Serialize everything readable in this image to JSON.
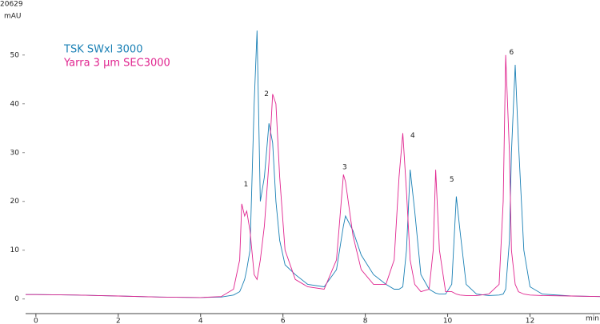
{
  "chart_data": {
    "type": "line",
    "header_value": "20629",
    "y_label": "mAU",
    "x_label": "min",
    "annotations": [
      "1",
      "2",
      "3",
      "4",
      "5",
      "6"
    ],
    "x": [
      -0.25,
      0,
      1,
      2,
      3,
      4,
      4.5,
      4.8,
      4.95,
      5.0,
      5.07,
      5.12,
      5.2,
      5.3,
      5.37,
      5.45,
      5.55,
      5.66,
      5.75,
      5.83,
      5.92,
      6.05,
      6.3,
      6.6,
      7.0,
      7.3,
      7.47,
      7.52,
      7.7,
      7.9,
      8.2,
      8.5,
      8.7,
      8.82,
      8.91,
      9.0,
      9.09,
      9.2,
      9.35,
      9.55,
      9.65,
      9.71,
      9.8,
      9.95,
      10.1,
      10.21,
      10.3,
      10.45,
      10.7,
      11.0,
      11.25,
      11.35,
      11.41,
      11.5,
      11.55,
      11.64,
      11.72,
      11.85,
      12.0,
      12.3,
      13,
      13.7
    ],
    "series": [
      {
        "name": "TSK SWxl 3000",
        "color": "#1a80b5",
        "values": [
          0.9,
          0.9,
          0.8,
          0.6,
          0.4,
          0.3,
          0.4,
          0.8,
          1.5,
          2.5,
          4,
          6,
          10,
          40,
          55,
          20,
          25,
          36,
          32,
          20,
          12,
          7,
          5,
          3,
          2.5,
          6,
          15,
          17,
          14,
          9,
          5,
          3,
          2,
          2,
          2.5,
          10,
          26.5,
          18,
          5,
          2,
          1.5,
          1.2,
          1,
          1,
          3,
          21,
          14,
          3,
          1,
          0.7,
          0.8,
          1,
          2,
          12,
          30,
          48,
          32,
          10,
          2.5,
          1,
          0.6,
          0.5
        ]
      },
      {
        "name": "Yarra 3 µm SEC3000",
        "color": "#e0258f",
        "values": [
          0.9,
          0.9,
          0.8,
          0.6,
          0.4,
          0.3,
          0.5,
          2,
          8,
          19.5,
          17,
          18,
          14,
          5,
          4,
          8,
          15,
          28,
          42,
          40,
          25,
          10,
          4,
          2.5,
          2,
          8,
          25.5,
          24,
          13,
          6,
          3,
          3,
          8,
          25,
          34,
          22,
          8,
          3,
          1.5,
          2,
          10,
          26.5,
          10,
          1.5,
          1.5,
          1,
          0.8,
          0.7,
          0.7,
          1,
          3,
          20,
          50,
          30,
          10,
          3,
          1.5,
          1,
          0.8,
          0.7,
          0.6,
          0.5
        ]
      }
    ],
    "xlim": [
      -0.25,
      13.7
    ],
    "ylim": [
      -3,
      58
    ],
    "xticks": [
      0,
      2,
      4,
      6,
      8,
      10,
      12
    ],
    "yticks": [
      0,
      10,
      20,
      30,
      40,
      50
    ]
  }
}
